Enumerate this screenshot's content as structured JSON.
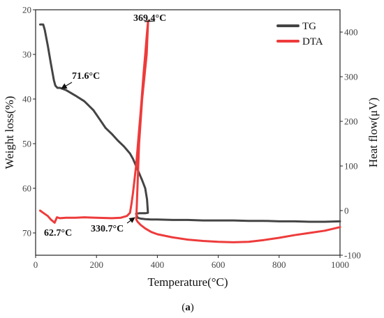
{
  "chart_data": {
    "type": "line",
    "xlabel": "Temperature(°C)",
    "ylabel_left": "Weight loss(%)",
    "ylabel_right": "Heat flow(μV)",
    "xlim": [
      0,
      1000
    ],
    "ylim_left": [
      20,
      75
    ],
    "ylim_left_inverted": true,
    "ylim_right": [
      -100,
      450
    ],
    "x_ticks": [
      "0",
      "200",
      "400",
      "600",
      "800",
      "1000"
    ],
    "y_left_ticks": [
      "20",
      "30",
      "40",
      "50",
      "60",
      "70"
    ],
    "y_right_ticks": [
      "-100",
      "0",
      "100",
      "200",
      "300",
      "400"
    ],
    "grid": false,
    "legend_position": "top-right",
    "caption_prefix": "(",
    "caption_bold": "a",
    "caption_suffix": ")",
    "series": [
      {
        "name": "TG",
        "axis": "left",
        "color": "#444444",
        "x": [
          15,
          25,
          30,
          40,
          50,
          60,
          65,
          71.6,
          80,
          100,
          130,
          160,
          190,
          210,
          230,
          250,
          270,
          290,
          310,
          320,
          330,
          340,
          350,
          360,
          366,
          369,
          360,
          350,
          340,
          330,
          335,
          345,
          360,
          380,
          400,
          450,
          500,
          550,
          600,
          650,
          700,
          750,
          800,
          850,
          900,
          950,
          1000
        ],
        "values": [
          23.3,
          23.3,
          24.5,
          28,
          32,
          35.8,
          37,
          37.5,
          37.5,
          38,
          39.2,
          40.5,
          42.5,
          44.5,
          46.5,
          47.8,
          49.3,
          50.6,
          52.2,
          53.4,
          55,
          56.6,
          58.2,
          60,
          62.5,
          65.5,
          65.6,
          65.6,
          65.6,
          65.7,
          66.6,
          66.8,
          66.9,
          67,
          67,
          67.1,
          67.1,
          67.2,
          67.2,
          67.2,
          67.3,
          67.3,
          67.4,
          67.4,
          67.5,
          67.5,
          67.4
        ]
      },
      {
        "name": "DTA",
        "axis": "right",
        "color": "#ee3b3b",
        "x": [
          15,
          25,
          40,
          50,
          62.7,
          70,
          80,
          100,
          130,
          160,
          200,
          250,
          280,
          300,
          310,
          315,
          320,
          325,
          330,
          335,
          340,
          345,
          350,
          355,
          360,
          365,
          369.4,
          365,
          350,
          340,
          330.7,
          335,
          345,
          360,
          380,
          400,
          450,
          500,
          550,
          600,
          650,
          700,
          750,
          800,
          850,
          900,
          950,
          1000
        ],
        "values": [
          0,
          -5,
          -12,
          -20,
          -27,
          -15,
          -17,
          -16,
          -16,
          -15,
          -16,
          -17,
          -16,
          -12,
          -5,
          15,
          40,
          70,
          100,
          140,
          180,
          220,
          265,
          310,
          350,
          390,
          425,
          350,
          250,
          150,
          -20,
          -25,
          -32,
          -40,
          -48,
          -53,
          -60,
          -65,
          -68,
          -70,
          -71,
          -70,
          -66,
          -61,
          -55,
          -50,
          -45,
          -37
        ]
      }
    ],
    "annotations": [
      {
        "text": "71.6°C",
        "series": "TG",
        "at_x": 71.6,
        "at_y": 37.5
      },
      {
        "text": "369.4°C",
        "series": "DTA",
        "at_x": 369.4,
        "at_y": 425
      },
      {
        "text": "62.7°C",
        "series": "DTA",
        "at_x": 62.7,
        "at_y": -27
      },
      {
        "text": "330.7°C",
        "series": "DTA",
        "at_x": 330.7,
        "at_y": -20
      }
    ]
  }
}
